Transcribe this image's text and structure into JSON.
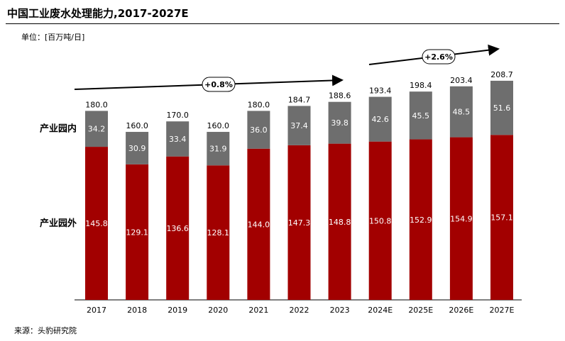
{
  "title": "中国工业废水处理能力,2017-2027E",
  "unit_label": "单位：[百万吨/日]",
  "source_label": "来源：头豹研究院",
  "colors": {
    "outside": "#a20000",
    "inside": "#6e6e6e",
    "total_label": "#000000",
    "inner_label": "#ffffff"
  },
  "chart_data": {
    "type": "bar",
    "stacked": true,
    "categories": [
      "2017",
      "2018",
      "2019",
      "2020",
      "2021",
      "2022",
      "2023",
      "2024E",
      "2025E",
      "2026E",
      "2027E"
    ],
    "series": [
      {
        "name": "产业园外",
        "values": [
          145.8,
          129.1,
          136.6,
          128.1,
          144.0,
          147.3,
          148.8,
          150.8,
          152.9,
          154.9,
          157.1
        ]
      },
      {
        "name": "产业园内",
        "values": [
          34.2,
          30.9,
          33.4,
          31.9,
          36.0,
          37.4,
          39.8,
          42.6,
          45.5,
          48.5,
          51.6
        ]
      }
    ],
    "totals": [
      180.0,
      160.0,
      170.0,
      160.0,
      180.0,
      184.7,
      188.6,
      193.4,
      198.4,
      203.4,
      208.7
    ],
    "annotations": [
      {
        "text": "+0.8%",
        "from": "2017",
        "to": "2023"
      },
      {
        "text": "+2.6%",
        "from": "2024E",
        "to": "2027E"
      }
    ],
    "ylim": [
      0,
      220
    ]
  }
}
